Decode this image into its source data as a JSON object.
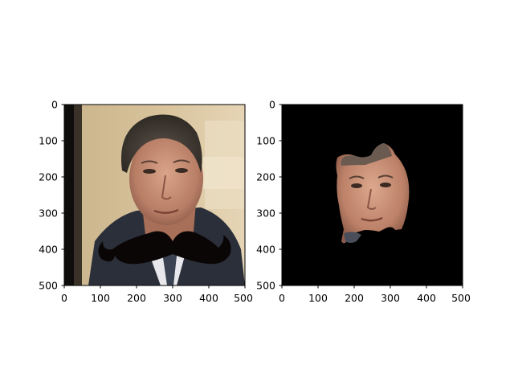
{
  "figure": {
    "left_axes": {
      "x_ticks": [
        "0",
        "100",
        "200",
        "300",
        "400",
        "500"
      ],
      "y_ticks": [
        "0",
        "100",
        "200",
        "300",
        "400",
        "500"
      ],
      "image": "photo-of-man-with-drawn-mustache"
    },
    "right_axes": {
      "x_ticks": [
        "0",
        "100",
        "200",
        "300",
        "400",
        "500"
      ],
      "y_ticks": [
        "0",
        "100",
        "200",
        "300",
        "400",
        "500"
      ],
      "image": "masked-face-region-on-black-background"
    }
  }
}
